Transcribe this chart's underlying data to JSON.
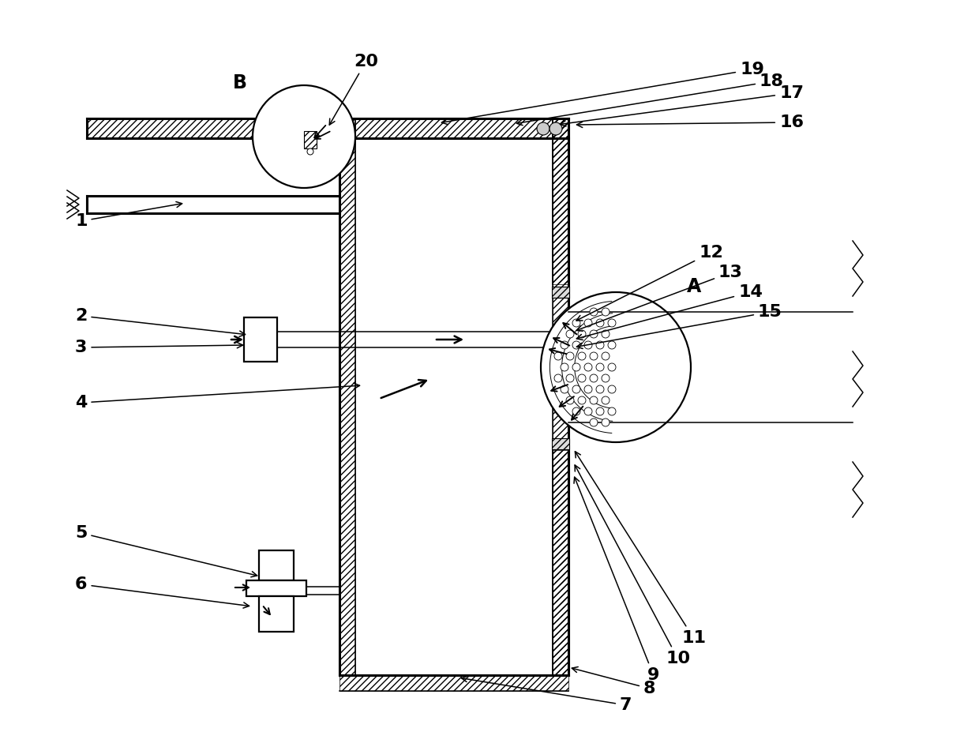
{
  "bg": "#ffffff",
  "lc": "#000000",
  "fig_w": 12.4,
  "fig_h": 9.27,
  "dpi": 100
}
